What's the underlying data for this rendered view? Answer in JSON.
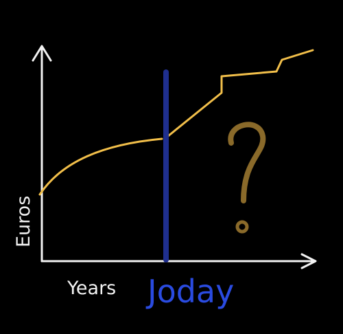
{
  "diagram": {
    "y_axis_label": "Euros",
    "x_axis_label": "Years",
    "divider_label": "Joday",
    "unknown_future_symbol": "question-mark"
  },
  "colors": {
    "background": "#000000",
    "axes": "#f2f2f2",
    "curve": "#f2bf4a",
    "divider": "#1f2f8f",
    "divider_label": "#2a4be0",
    "question_mark": "#8a6a2a"
  }
}
